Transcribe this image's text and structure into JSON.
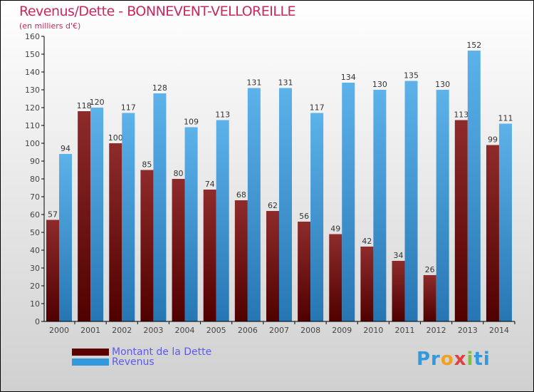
{
  "title": "Revenus/Dette - BONNEVENT-VELLOREILLE",
  "subtitle": "(en milliers d'€)",
  "logo": "Proxiti",
  "chart_data": {
    "type": "bar",
    "title": "Revenus/Dette - BONNEVENT-VELLOREILLE",
    "ylabel": "(en milliers d'€)",
    "ylim": [
      0,
      160
    ],
    "yticks": [
      0,
      10,
      20,
      30,
      40,
      50,
      60,
      70,
      80,
      90,
      100,
      110,
      120,
      130,
      140,
      150,
      160
    ],
    "categories": [
      "2000",
      "2001",
      "2002",
      "2003",
      "2004",
      "2005",
      "2006",
      "2007",
      "2008",
      "2009",
      "2010",
      "2011",
      "2012",
      "2013",
      "2014"
    ],
    "series": [
      {
        "name": "Montant de la Dette",
        "color": "#5c0000",
        "values": [
          57,
          118,
          100,
          85,
          80,
          74,
          68,
          62,
          56,
          49,
          42,
          34,
          26,
          113,
          99
        ]
      },
      {
        "name": "Revenus",
        "color": "#3399dd",
        "values": [
          94,
          120,
          117,
          128,
          109,
          113,
          131,
          131,
          117,
          134,
          130,
          135,
          130,
          152,
          111
        ]
      }
    ],
    "legend": "bottom-left"
  }
}
